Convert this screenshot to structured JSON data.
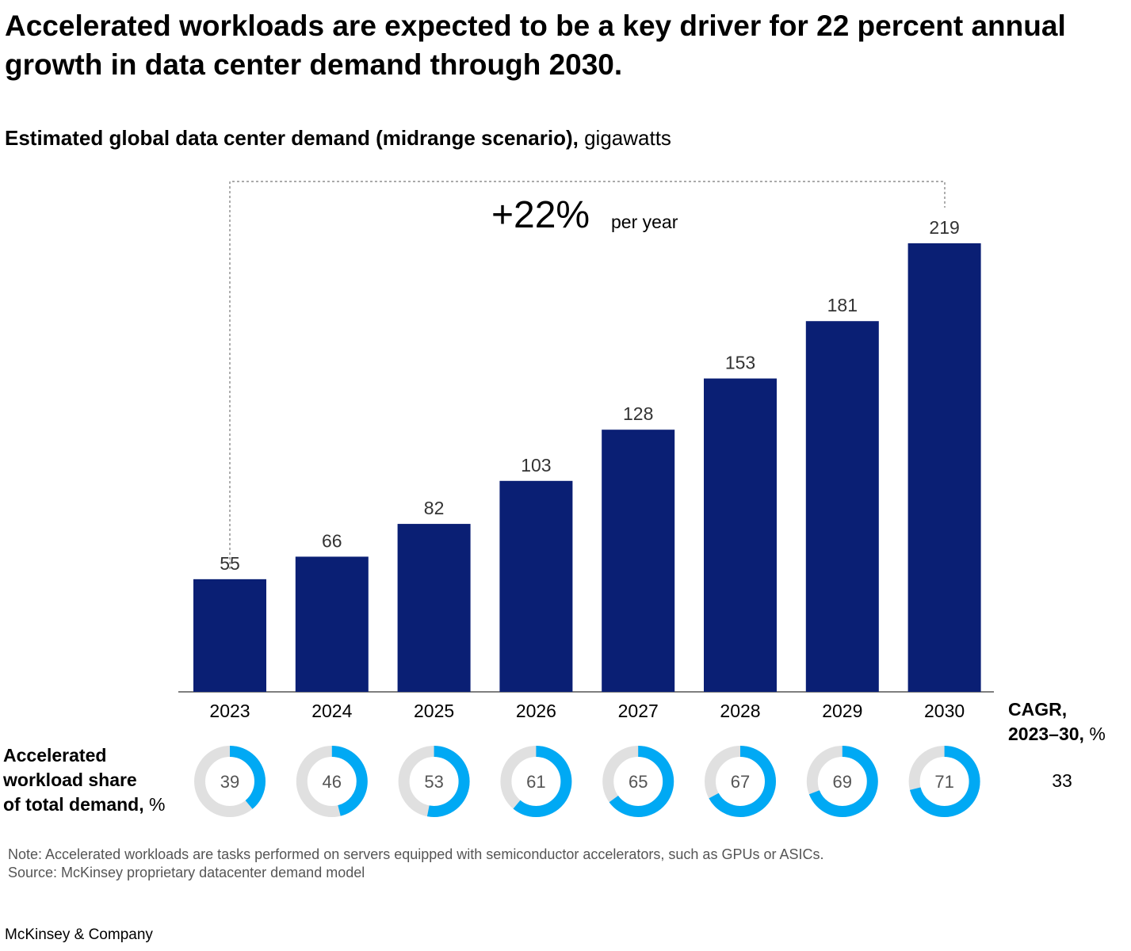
{
  "headline": "Accelerated workloads are expected to be a key driver for 22 percent annual growth in data center demand through 2030.",
  "subtitle": {
    "bold": "Estimated global data center demand (midrange scenario),",
    "unit": "gigawatts"
  },
  "growth_annotation": {
    "value": "+22%",
    "label": "per year"
  },
  "side_label": {
    "bold_lines": [
      "Accelerated",
      "workload share",
      "of total demand,"
    ],
    "unit": "%"
  },
  "cagr": {
    "label_line1": "CAGR,",
    "label_line2_bold": "2023–30,",
    "label_unit": "%",
    "value": "33"
  },
  "note": "Note: Accelerated workloads are tasks performed on servers equipped with semiconductor accelerators, such as GPUs or ASICs.",
  "source": "Source: McKinsey proprietary datacenter demand model",
  "logo": "McKinsey & Company",
  "colors": {
    "bar": "#0a1f74",
    "donut_fill": "#00a9f4",
    "donut_track": "#e0e0e0",
    "donut_text": "#555555",
    "value_label": "#333333"
  },
  "chart_data": [
    {
      "type": "bar",
      "categories": [
        "2023",
        "2024",
        "2025",
        "2026",
        "2027",
        "2028",
        "2029",
        "2030"
      ],
      "values": [
        55,
        66,
        82,
        103,
        128,
        153,
        181,
        219
      ],
      "title": "Estimated global data center demand (midrange scenario), gigawatts",
      "annotation": "+22% per year",
      "grid": false
    },
    {
      "type": "pie",
      "variant": "donut",
      "categories": [
        "2023",
        "2024",
        "2025",
        "2026",
        "2027",
        "2028",
        "2029",
        "2030"
      ],
      "values": [
        39,
        46,
        53,
        61,
        65,
        67,
        69,
        71
      ],
      "title": "Accelerated workload share of total demand, %",
      "cagr_2023_30": 33
    }
  ]
}
